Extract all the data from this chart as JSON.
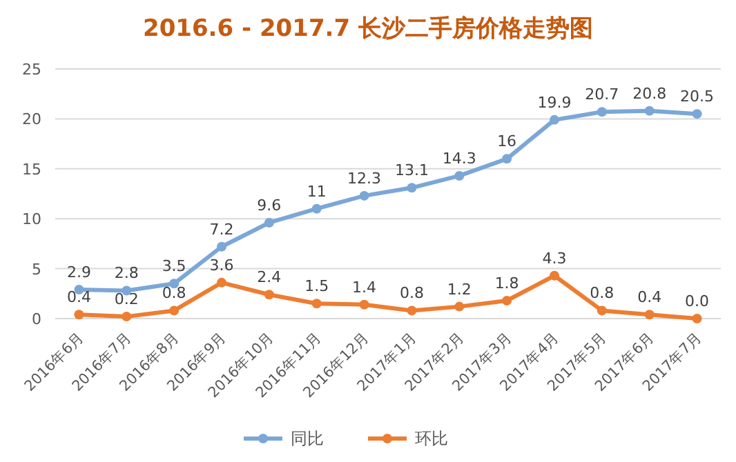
{
  "chart_data": {
    "type": "line",
    "title": "2016.6 - 2017.7 长沙二手房价格走势图",
    "categories": [
      "2016年6月",
      "2016年7月",
      "2016年8月",
      "2016年9月",
      "2016年10月",
      "2016年11月",
      "2016年12月",
      "2017年1月",
      "2017年2月",
      "2017年3月",
      "2017年4月",
      "2017年5月",
      "2017年6月",
      "2017年7月"
    ],
    "series": [
      {
        "name": "同比",
        "color": "#7ba7d7",
        "values": [
          2.9,
          2.8,
          3.5,
          7.2,
          9.6,
          11,
          12.3,
          13.1,
          14.3,
          16,
          19.9,
          20.7,
          20.8,
          20.5
        ],
        "value_labels": [
          "2.9",
          "2.8",
          "3.5",
          "7.2",
          "9.6",
          "11",
          "12.3",
          "13.1",
          "14.3",
          "16",
          "19.9",
          "20.7",
          "20.8",
          "20.5"
        ]
      },
      {
        "name": "环比",
        "color": "#ed7d31",
        "values": [
          0.4,
          0.2,
          0.8,
          3.6,
          2.4,
          1.5,
          1.4,
          0.8,
          1.2,
          1.8,
          4.3,
          0.8,
          0.4,
          0.0
        ],
        "value_labels": [
          "0.4",
          "0.2",
          "0.8",
          "3.6",
          "2.4",
          "1.5",
          "1.4",
          "0.8",
          "1.2",
          "1.8",
          "4.3",
          "0.8",
          "0.4",
          "0.0"
        ]
      }
    ],
    "ylim": [
      0,
      25
    ],
    "yticks": [
      0,
      5,
      10,
      15,
      20,
      25
    ],
    "grid": "y",
    "legend": "bottom",
    "marker": "circle",
    "line_style": "solid"
  }
}
